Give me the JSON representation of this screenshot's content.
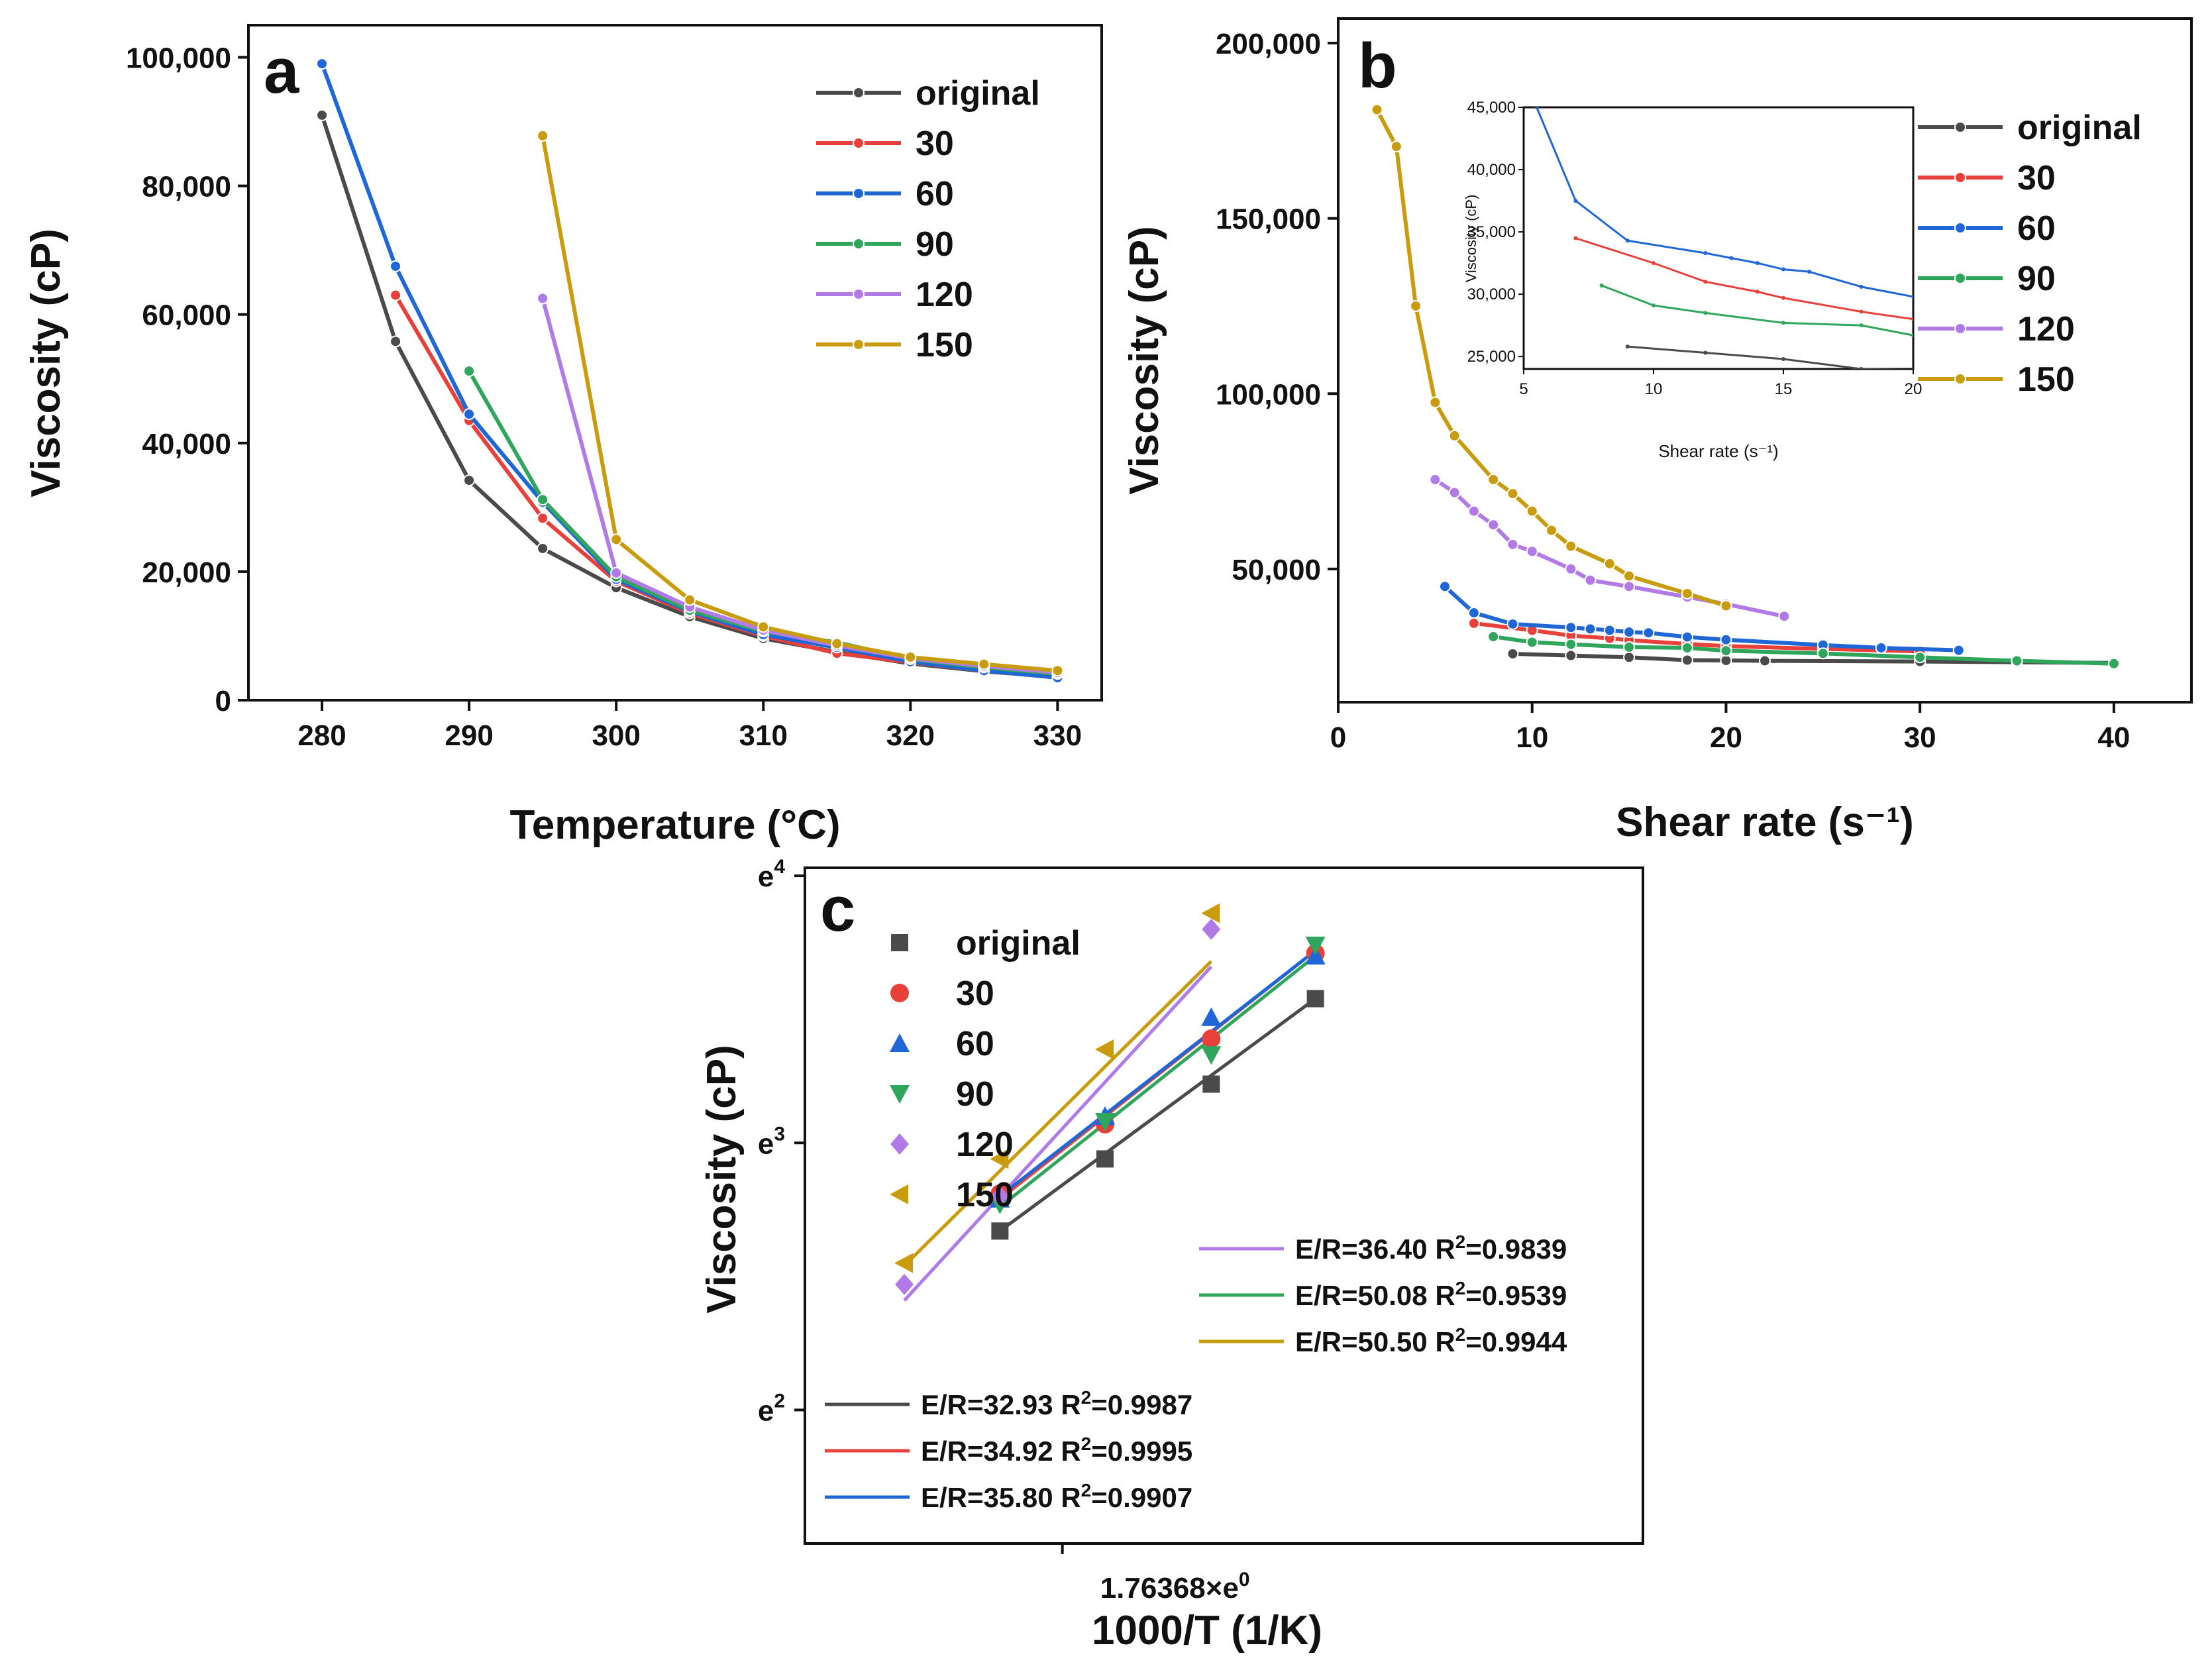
{
  "colors": {
    "original": "#4a4a4a",
    "30": "#e8413b",
    "60": "#1f66d6",
    "90": "#2fa65b",
    "120": "#b27ae6",
    "150": "#c99c0e"
  },
  "legend_series": [
    "original",
    "30",
    "60",
    "90",
    "120",
    "150"
  ],
  "chart_data": [
    {
      "panel": "a",
      "type": "line",
      "xlabel": "Temperature (°C)",
      "ylabel": "Viscosity (cP)",
      "xlim": [
        275,
        333
      ],
      "ylim": [
        0,
        105000
      ],
      "xticks": [
        280,
        290,
        300,
        310,
        320,
        330
      ],
      "yticks": [
        0,
        20000,
        40000,
        60000,
        80000,
        100000
      ],
      "ytick_labels": [
        "0",
        "20,000",
        "40,000",
        "60,000",
        "80,000",
        "100,000"
      ],
      "legend": "top-right",
      "series": [
        {
          "name": "original",
          "x": [
            280,
            285,
            290,
            295,
            300,
            305,
            310,
            315,
            320,
            325,
            330
          ],
          "values": [
            91000,
            55800,
            34200,
            23600,
            17500,
            13000,
            9600,
            7500,
            5700,
            4500,
            3600
          ]
        },
        {
          "name": "30",
          "x": [
            285,
            290,
            295,
            300,
            305,
            310,
            315,
            320,
            325,
            330
          ],
          "values": [
            63000,
            43500,
            28300,
            18500,
            13500,
            10000,
            7300,
            5900,
            4600,
            3700
          ]
        },
        {
          "name": "60",
          "x": [
            280,
            285,
            290,
            295,
            300,
            305,
            310,
            315,
            320,
            325,
            330
          ],
          "values": [
            99000,
            67500,
            44500,
            30800,
            18800,
            13800,
            10200,
            8200,
            6000,
            4600,
            3500
          ]
        },
        {
          "name": "90",
          "x": [
            290,
            295,
            300,
            305,
            310,
            315,
            320,
            325,
            330
          ],
          "values": [
            51200,
            31200,
            19200,
            14000,
            10700,
            9000,
            6400,
            5100,
            4100
          ]
        },
        {
          "name": "120",
          "x": [
            295,
            300,
            305,
            310,
            315,
            320,
            325,
            330
          ],
          "values": [
            62500,
            19800,
            14500,
            10900,
            8500,
            6500,
            5300,
            4300
          ]
        },
        {
          "name": "150",
          "x": [
            295,
            300,
            305,
            310,
            315,
            320,
            325,
            330
          ],
          "values": [
            87800,
            25000,
            15600,
            11400,
            8800,
            6700,
            5600,
            4600
          ]
        }
      ]
    },
    {
      "panel": "b",
      "type": "line",
      "xlabel": "Shear rate (s⁻¹)",
      "ylabel": "Viscosity (cP)",
      "xlim": [
        0,
        44
      ],
      "ylim": [
        12000,
        207000
      ],
      "xticks": [
        0,
        10,
        20,
        30,
        40
      ],
      "yticks": [
        50000,
        100000,
        150000,
        200000
      ],
      "ytick_labels": [
        "50,000",
        "100,000",
        "150,000",
        "200,000"
      ],
      "legend": "top-right",
      "series": [
        {
          "name": "original",
          "x": [
            9,
            12,
            15,
            18,
            20,
            22,
            30,
            35,
            40
          ],
          "values": [
            25800,
            25300,
            24800,
            24000,
            23900,
            23800,
            23600,
            23400,
            23200
          ]
        },
        {
          "name": "30",
          "x": [
            7,
            10,
            12,
            14,
            15,
            18,
            20,
            25,
            30
          ],
          "values": [
            34500,
            32500,
            31000,
            30200,
            29700,
            28600,
            28000,
            27200,
            26500
          ]
        },
        {
          "name": "60",
          "x": [
            5.5,
            7,
            9,
            12,
            13,
            14,
            15,
            16,
            18,
            20,
            25,
            28,
            32
          ],
          "values": [
            45000,
            37500,
            34300,
            33300,
            32900,
            32500,
            32000,
            31800,
            30600,
            29800,
            28300,
            27500,
            26800
          ]
        },
        {
          "name": "90",
          "x": [
            8,
            10,
            12,
            15,
            18,
            20,
            25,
            30,
            35,
            40
          ],
          "values": [
            30700,
            29100,
            28500,
            27700,
            27500,
            26700,
            25900,
            24800,
            23800,
            23000
          ]
        },
        {
          "name": "120",
          "x": [
            5,
            6,
            7,
            8,
            9,
            10,
            12,
            13,
            15,
            18,
            20,
            23
          ],
          "values": [
            75500,
            71800,
            66500,
            62600,
            57000,
            55000,
            50000,
            46800,
            45000,
            42000,
            40000,
            36500
          ]
        },
        {
          "name": "150",
          "x": [
            2,
            3,
            4,
            5,
            6,
            8,
            9,
            10,
            11,
            12,
            14,
            15,
            18,
            20
          ],
          "values": [
            181000,
            170500,
            125000,
            97500,
            88000,
            75500,
            71500,
            66500,
            61000,
            56500,
            51500,
            48000,
            43000,
            39500
          ]
        }
      ],
      "inset": {
        "xlabel": "Shear rate (s⁻¹)",
        "ylabel": "Viscosity (cP)",
        "xlim": [
          5,
          20
        ],
        "ylim": [
          24000,
          45000
        ],
        "xticks": [
          5,
          10,
          15,
          20
        ],
        "yticks": [
          25000,
          30000,
          35000,
          40000,
          45000
        ],
        "ytick_labels": [
          "25,000",
          "30,000",
          "35,000",
          "40,000",
          "45,000"
        ],
        "series_names": [
          "original",
          "30",
          "60",
          "90"
        ]
      }
    },
    {
      "panel": "c",
      "type": "scatter",
      "xlabel": "1000/T (1/K)",
      "ylabel": "Viscosity (cP)",
      "xlim": [
        1.65,
        2.02
      ],
      "ylim": [
        1.5,
        4.03
      ],
      "yticks": [
        2,
        3,
        4
      ],
      "ytick_labels": [
        "e2",
        "e3",
        "e4"
      ],
      "xticks": [
        1.76368
      ],
      "xtick_offset_label": "1.76368×e",
      "xtick_offset_exp": "0",
      "legend": "top-left",
      "series": [
        {
          "name": "original",
          "marker": "square",
          "x": [
            1.7361,
            1.7825,
            1.8294,
            1.8754
          ],
          "values": [
            2.67,
            2.94,
            3.22,
            3.54
          ]
        },
        {
          "name": "30",
          "marker": "circle",
          "x": [
            1.7361,
            1.7825,
            1.8294,
            1.8754
          ],
          "values": [
            2.81,
            3.07,
            3.39,
            3.71
          ]
        },
        {
          "name": "60",
          "marker": "triangle-up",
          "x": [
            1.7361,
            1.7825,
            1.8294,
            1.8754
          ],
          "values": [
            2.79,
            3.1,
            3.47,
            3.7
          ]
        },
        {
          "name": "90",
          "marker": "triangle-down",
          "x": [
            1.7361,
            1.7825,
            1.8294,
            1.8754
          ],
          "values": [
            2.77,
            3.08,
            3.33,
            3.74
          ]
        },
        {
          "name": "120",
          "marker": "diamond",
          "x": [
            1.6939,
            1.7361,
            1.8294
          ],
          "values": [
            2.47,
            2.8,
            3.8
          ]
        },
        {
          "name": "150",
          "marker": "triangle-left",
          "x": [
            1.6939,
            1.7361,
            1.7825,
            1.8294
          ],
          "values": [
            2.55,
            2.94,
            3.35,
            3.86
          ]
        }
      ],
      "fits": [
        {
          "name": "120",
          "label_pre": "E/R=36.40 R",
          "label_sup": "2",
          "label_post": "=0.9839",
          "x": [
            1.6939,
            1.8294
          ],
          "values": [
            2.41,
            3.66
          ]
        },
        {
          "name": "90",
          "label_pre": "E/R=50.08 R",
          "label_sup": "2",
          "label_post": "=0.9539",
          "x": [
            1.7361,
            1.8754
          ],
          "values": [
            2.76,
            3.7
          ]
        },
        {
          "name": "150",
          "label_pre": "E/R=50.50 R",
          "label_sup": "2",
          "label_post": "=0.9944",
          "x": [
            1.6939,
            1.8294
          ],
          "values": [
            2.54,
            3.68
          ]
        },
        {
          "name": "original",
          "label_pre": "E/R=32.93 R",
          "label_sup": "2",
          "label_post": "=0.9987",
          "x": [
            1.7361,
            1.8754
          ],
          "values": [
            2.67,
            3.54
          ]
        },
        {
          "name": "30",
          "label_pre": "E/R=34.92 R",
          "label_sup": "2",
          "label_post": "=0.9995",
          "x": [
            1.7361,
            1.8754
          ],
          "values": [
            2.79,
            3.72
          ]
        },
        {
          "name": "60",
          "label_pre": "E/R=35.80 R",
          "label_sup": "2",
          "label_post": "=0.9907",
          "x": [
            1.7361,
            1.8754
          ],
          "values": [
            2.8,
            3.72
          ]
        }
      ]
    }
  ]
}
